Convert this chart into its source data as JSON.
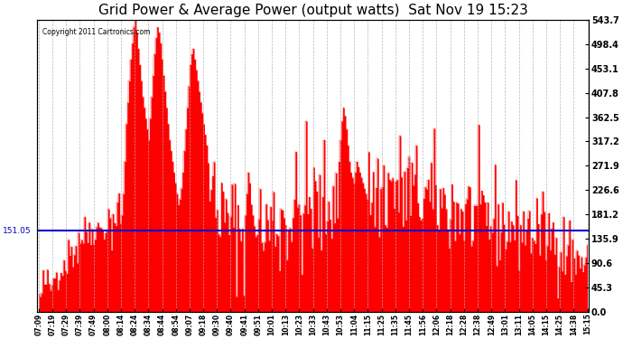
{
  "title": "Grid Power & Average Power (output watts)  Sat Nov 19 15:23",
  "copyright": "Copyright 2011 Cartronics.com",
  "avg_line_value": 151.05,
  "avg_line_label": "151.05",
  "ymin": 0.0,
  "ymax": 543.7,
  "yticks": [
    0.0,
    45.3,
    90.6,
    135.9,
    181.2,
    226.6,
    271.9,
    317.2,
    362.5,
    407.8,
    453.1,
    498.4,
    543.7
  ],
  "background_color": "#ffffff",
  "fill_color": "#ff0000",
  "line_color": "#0000cc",
  "grid_color": "#b0b0b0",
  "title_fontsize": 11,
  "x_labels": [
    "07:09",
    "07:19",
    "07:29",
    "07:39",
    "07:49",
    "08:00",
    "08:14",
    "08:24",
    "08:34",
    "08:44",
    "08:54",
    "09:07",
    "09:18",
    "09:30",
    "09:40",
    "09:41",
    "09:51",
    "10:01",
    "10:13",
    "10:23",
    "10:33",
    "10:43",
    "10:53",
    "11:04",
    "11:15",
    "11:25",
    "11:35",
    "11:45",
    "11:56",
    "12:06",
    "12:18",
    "12:28",
    "12:38",
    "12:49",
    "13:01",
    "13:11",
    "14:05",
    "14:15",
    "14:25",
    "14:38",
    "15:15"
  ],
  "n_points": 370
}
